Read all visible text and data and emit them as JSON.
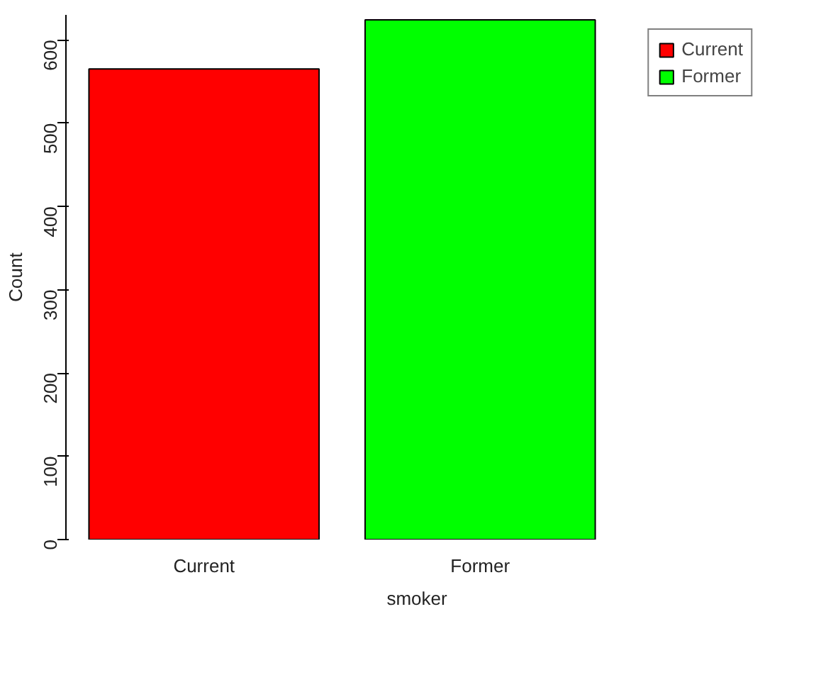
{
  "chart_data": {
    "type": "bar",
    "xlabel": "smoker",
    "ylabel": "Count",
    "categories": [
      "Current",
      "Former"
    ],
    "series": [
      {
        "name": "Current",
        "color": "#ff0000",
        "values": [
          565,
          null
        ]
      },
      {
        "name": "Former",
        "color": "#00ff00",
        "values": [
          null,
          624
        ]
      }
    ],
    "ylim": [
      0,
      630
    ],
    "yticks": [
      0,
      100,
      200,
      300,
      400,
      500,
      600
    ],
    "legend": "top right"
  }
}
